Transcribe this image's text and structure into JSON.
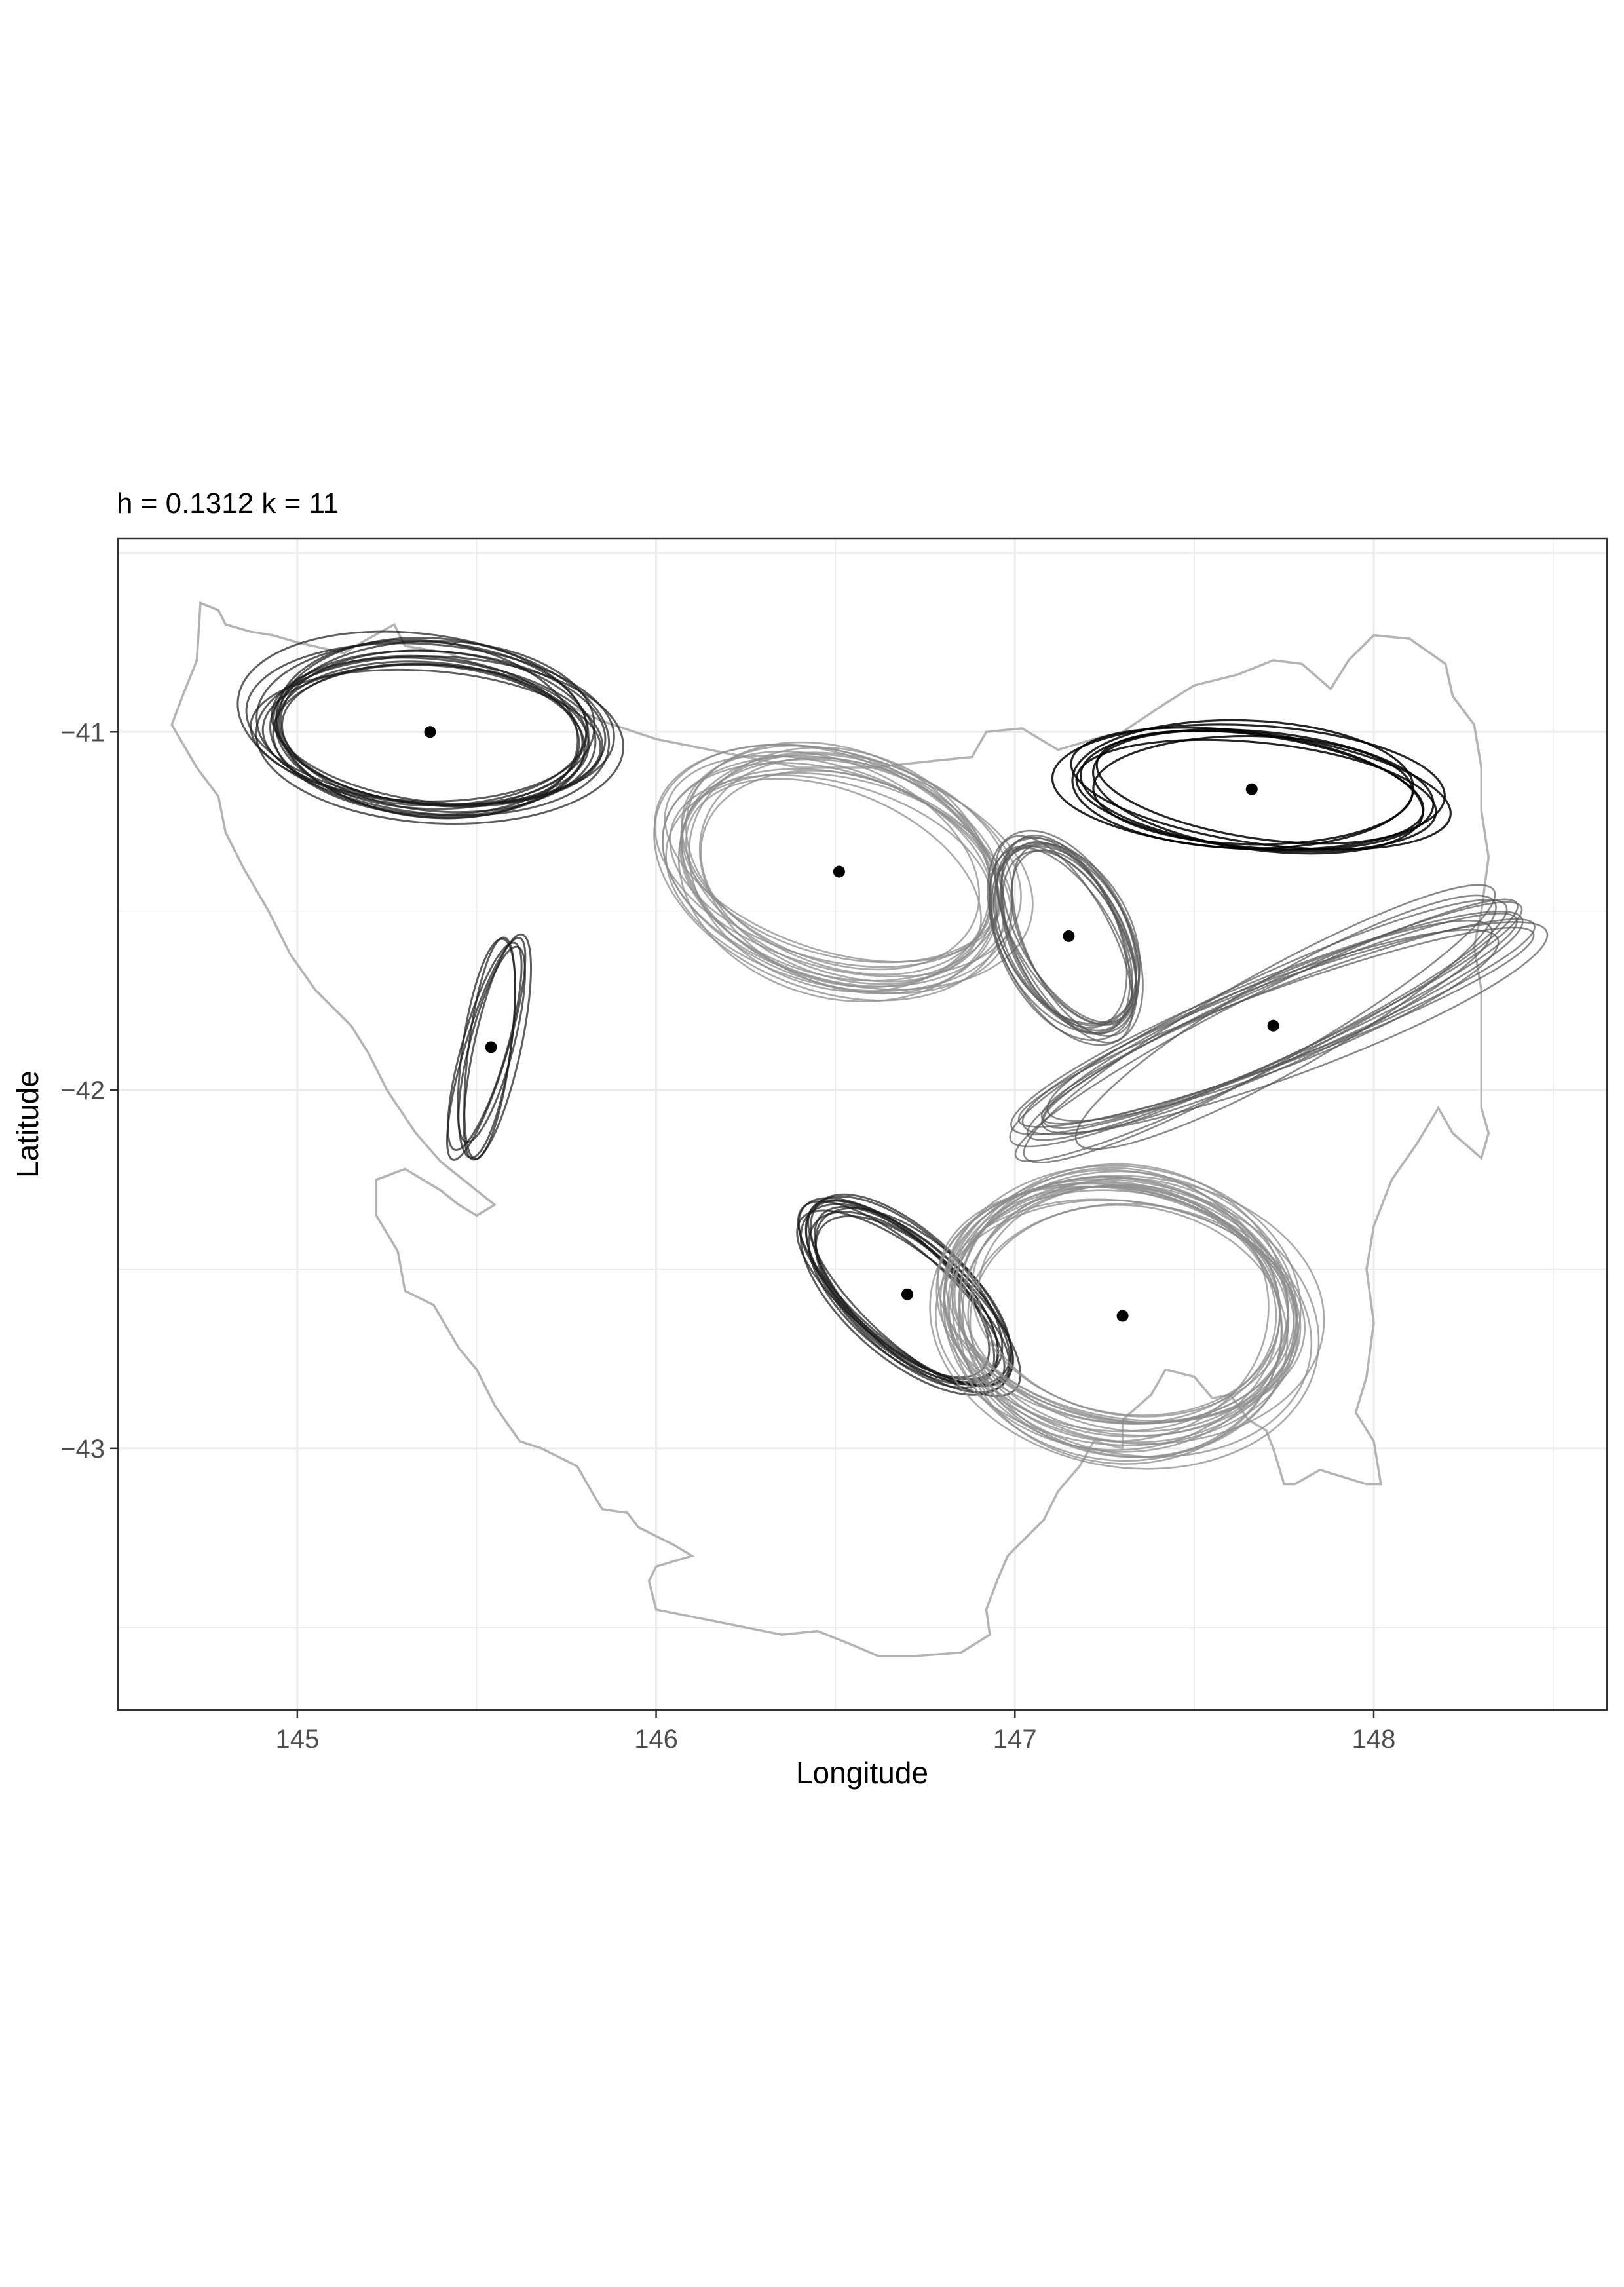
{
  "chart_data": {
    "type": "scatter",
    "title": "h = 0.1312 k = 11",
    "xlabel": "Longitude",
    "ylabel": "Latitude",
    "xlim": [
      144.5,
      148.65
    ],
    "ylim": [
      -43.73,
      -40.46
    ],
    "x_ticks": [
      145,
      146,
      147,
      148
    ],
    "x_tick_labels": [
      "145",
      "146",
      "147",
      "148"
    ],
    "y_ticks": [
      -41,
      -42,
      -43
    ],
    "y_tick_labels": [
      "−41",
      "−42",
      "−43"
    ],
    "grid": true,
    "theme": "black-and-white",
    "colors": {
      "points": "#000000",
      "ellipse_dark": "#1a1a1a",
      "ellipse_light": "#8c8c8c",
      "outline": "#b3b3b3",
      "grid": "#ebebeb",
      "panel_border": "#333333"
    },
    "centers": [
      {
        "lon": 145.37,
        "lat": -41.0
      },
      {
        "lon": 145.54,
        "lat": -41.88
      },
      {
        "lon": 146.51,
        "lat": -41.39
      },
      {
        "lon": 147.15,
        "lat": -41.57
      },
      {
        "lon": 147.66,
        "lat": -41.16
      },
      {
        "lon": 147.72,
        "lat": -41.82
      },
      {
        "lon": 146.7,
        "lat": -42.57
      },
      {
        "lon": 147.3,
        "lat": -42.63
      }
    ],
    "ellipse_groups": [
      {
        "lon": 145.37,
        "lat": -41.0,
        "a": 0.48,
        "b": 0.22,
        "angle": -4,
        "count": 16,
        "style": "dark"
      },
      {
        "lon": 145.54,
        "lat": -41.88,
        "a": 0.3,
        "b": 0.065,
        "angle": 78,
        "count": 6,
        "style": "dark"
      },
      {
        "lon": 146.51,
        "lat": -41.39,
        "a": 0.48,
        "b": 0.3,
        "angle": -18,
        "count": 18,
        "style": "light"
      },
      {
        "lon": 147.15,
        "lat": -41.57,
        "a": 0.3,
        "b": 0.16,
        "angle": -62,
        "count": 14,
        "style": "medium"
      },
      {
        "lon": 147.66,
        "lat": -41.16,
        "a": 0.5,
        "b": 0.16,
        "angle": -4,
        "count": 8,
        "style": "black"
      },
      {
        "lon": 147.72,
        "lat": -41.82,
        "a": 0.78,
        "b": 0.12,
        "angle": 25,
        "count": 12,
        "style": "medium"
      },
      {
        "lon": 146.7,
        "lat": -42.57,
        "a": 0.35,
        "b": 0.15,
        "angle": -40,
        "count": 12,
        "style": "dark"
      },
      {
        "lon": 147.3,
        "lat": -42.63,
        "a": 0.5,
        "b": 0.36,
        "angle": -8,
        "count": 24,
        "style": "light"
      }
    ],
    "outline": [
      [
        144.73,
        -40.64
      ],
      [
        144.78,
        -40.66
      ],
      [
        144.8,
        -40.7
      ],
      [
        144.87,
        -40.72
      ],
      [
        144.93,
        -40.73
      ],
      [
        145.0,
        -40.75
      ],
      [
        145.13,
        -40.78
      ],
      [
        145.18,
        -40.75
      ],
      [
        145.27,
        -40.7
      ],
      [
        145.3,
        -40.76
      ],
      [
        145.42,
        -40.78
      ],
      [
        145.55,
        -40.83
      ],
      [
        145.7,
        -40.9
      ],
      [
        145.85,
        -40.97
      ],
      [
        146.0,
        -41.02
      ],
      [
        146.2,
        -41.06
      ],
      [
        146.4,
        -41.1
      ],
      [
        146.6,
        -41.1
      ],
      [
        146.78,
        -41.08
      ],
      [
        146.88,
        -41.07
      ],
      [
        146.92,
        -41.0
      ],
      [
        147.02,
        -40.99
      ],
      [
        147.12,
        -41.05
      ],
      [
        147.22,
        -41.02
      ],
      [
        147.3,
        -41.0
      ],
      [
        147.42,
        -40.92
      ],
      [
        147.5,
        -40.87
      ],
      [
        147.62,
        -40.84
      ],
      [
        147.72,
        -40.8
      ],
      [
        147.8,
        -40.81
      ],
      [
        147.88,
        -40.88
      ],
      [
        147.93,
        -40.8
      ],
      [
        148.0,
        -40.73
      ],
      [
        148.1,
        -40.74
      ],
      [
        148.2,
        -40.81
      ],
      [
        148.22,
        -40.9
      ],
      [
        148.28,
        -40.98
      ],
      [
        148.3,
        -41.1
      ],
      [
        148.3,
        -41.22
      ],
      [
        148.32,
        -41.35
      ],
      [
        148.3,
        -41.5
      ],
      [
        148.28,
        -41.6
      ],
      [
        148.3,
        -41.72
      ],
      [
        148.3,
        -41.85
      ],
      [
        148.3,
        -41.96
      ],
      [
        148.3,
        -42.05
      ],
      [
        148.32,
        -42.12
      ],
      [
        148.3,
        -42.19
      ],
      [
        148.22,
        -42.12
      ],
      [
        148.18,
        -42.05
      ],
      [
        148.12,
        -42.15
      ],
      [
        148.05,
        -42.25
      ],
      [
        148.0,
        -42.38
      ],
      [
        147.98,
        -42.5
      ],
      [
        148.0,
        -42.65
      ],
      [
        147.98,
        -42.8
      ],
      [
        147.95,
        -42.9
      ],
      [
        148.0,
        -42.98
      ],
      [
        148.02,
        -43.1
      ],
      [
        147.98,
        -43.1
      ],
      [
        147.85,
        -43.06
      ],
      [
        147.78,
        -43.1
      ],
      [
        147.75,
        -43.1
      ],
      [
        147.72,
        -43.0
      ],
      [
        147.7,
        -42.95
      ],
      [
        147.65,
        -42.92
      ],
      [
        147.6,
        -42.85
      ],
      [
        147.55,
        -42.86
      ],
      [
        147.5,
        -42.8
      ],
      [
        147.42,
        -42.78
      ],
      [
        147.38,
        -42.85
      ],
      [
        147.3,
        -42.92
      ],
      [
        147.3,
        -43.0
      ],
      [
        147.22,
        -42.98
      ],
      [
        147.18,
        -43.05
      ],
      [
        147.12,
        -43.12
      ],
      [
        147.08,
        -43.2
      ],
      [
        147.03,
        -43.25
      ],
      [
        146.98,
        -43.3
      ],
      [
        146.95,
        -43.37
      ],
      [
        146.92,
        -43.45
      ],
      [
        146.93,
        -43.52
      ],
      [
        146.85,
        -43.57
      ],
      [
        146.72,
        -43.58
      ],
      [
        146.62,
        -43.58
      ],
      [
        146.55,
        -43.55
      ],
      [
        146.45,
        -43.51
      ],
      [
        146.35,
        -43.52
      ],
      [
        146.25,
        -43.5
      ],
      [
        146.1,
        -43.47
      ],
      [
        146.0,
        -43.45
      ],
      [
        145.98,
        -43.37
      ],
      [
        146.0,
        -43.33
      ],
      [
        146.1,
        -43.3
      ],
      [
        146.05,
        -43.27
      ],
      [
        145.95,
        -43.22
      ],
      [
        145.92,
        -43.18
      ],
      [
        145.85,
        -43.17
      ],
      [
        145.82,
        -43.12
      ],
      [
        145.78,
        -43.05
      ],
      [
        145.68,
        -43.0
      ],
      [
        145.62,
        -42.98
      ],
      [
        145.55,
        -42.88
      ],
      [
        145.5,
        -42.78
      ],
      [
        145.45,
        -42.72
      ],
      [
        145.38,
        -42.6
      ],
      [
        145.3,
        -42.56
      ],
      [
        145.28,
        -42.45
      ],
      [
        145.22,
        -42.35
      ],
      [
        145.22,
        -42.25
      ],
      [
        145.3,
        -42.22
      ],
      [
        145.4,
        -42.28
      ],
      [
        145.45,
        -42.32
      ],
      [
        145.5,
        -42.35
      ],
      [
        145.55,
        -42.32
      ],
      [
        145.5,
        -42.28
      ],
      [
        145.4,
        -42.2
      ],
      [
        145.33,
        -42.12
      ],
      [
        145.25,
        -42.0
      ],
      [
        145.2,
        -41.9
      ],
      [
        145.15,
        -41.82
      ],
      [
        145.05,
        -41.72
      ],
      [
        144.98,
        -41.62
      ],
      [
        144.92,
        -41.5
      ],
      [
        144.85,
        -41.38
      ],
      [
        144.8,
        -41.28
      ],
      [
        144.78,
        -41.18
      ],
      [
        144.72,
        -41.1
      ],
      [
        144.65,
        -40.98
      ],
      [
        144.68,
        -40.9
      ],
      [
        144.72,
        -40.8
      ],
      [
        144.73,
        -40.64
      ]
    ]
  }
}
